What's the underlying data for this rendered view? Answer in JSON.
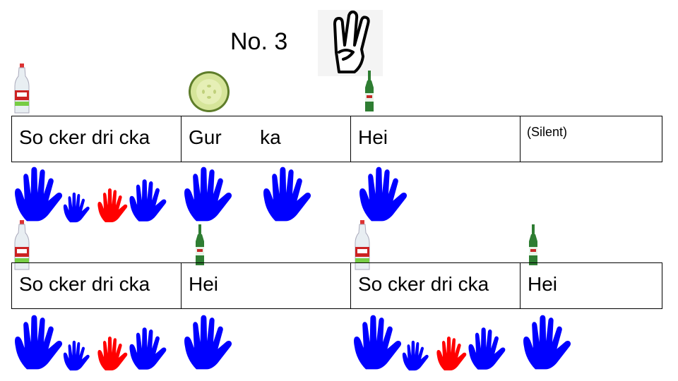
{
  "title": "No. 3",
  "icons": {
    "three_fingers": "three-fingers-hand-icon",
    "water_bottle": "sparkling-water-bottle-icon",
    "cucumber": "cucumber-slice-icon",
    "beer_bottle": "green-beer-bottle-icon",
    "hand": "hand-icon"
  },
  "colors": {
    "blue_hand": "#0000ff",
    "red_hand": "#ff0000"
  },
  "rows": [
    {
      "cells": [
        "So cker dri cka",
        "Gur       ka",
        "Hei",
        "(Silent)"
      ]
    },
    {
      "cells": [
        "So cker dri cka",
        "Hei",
        "So cker dri cka",
        "Hei"
      ]
    }
  ]
}
